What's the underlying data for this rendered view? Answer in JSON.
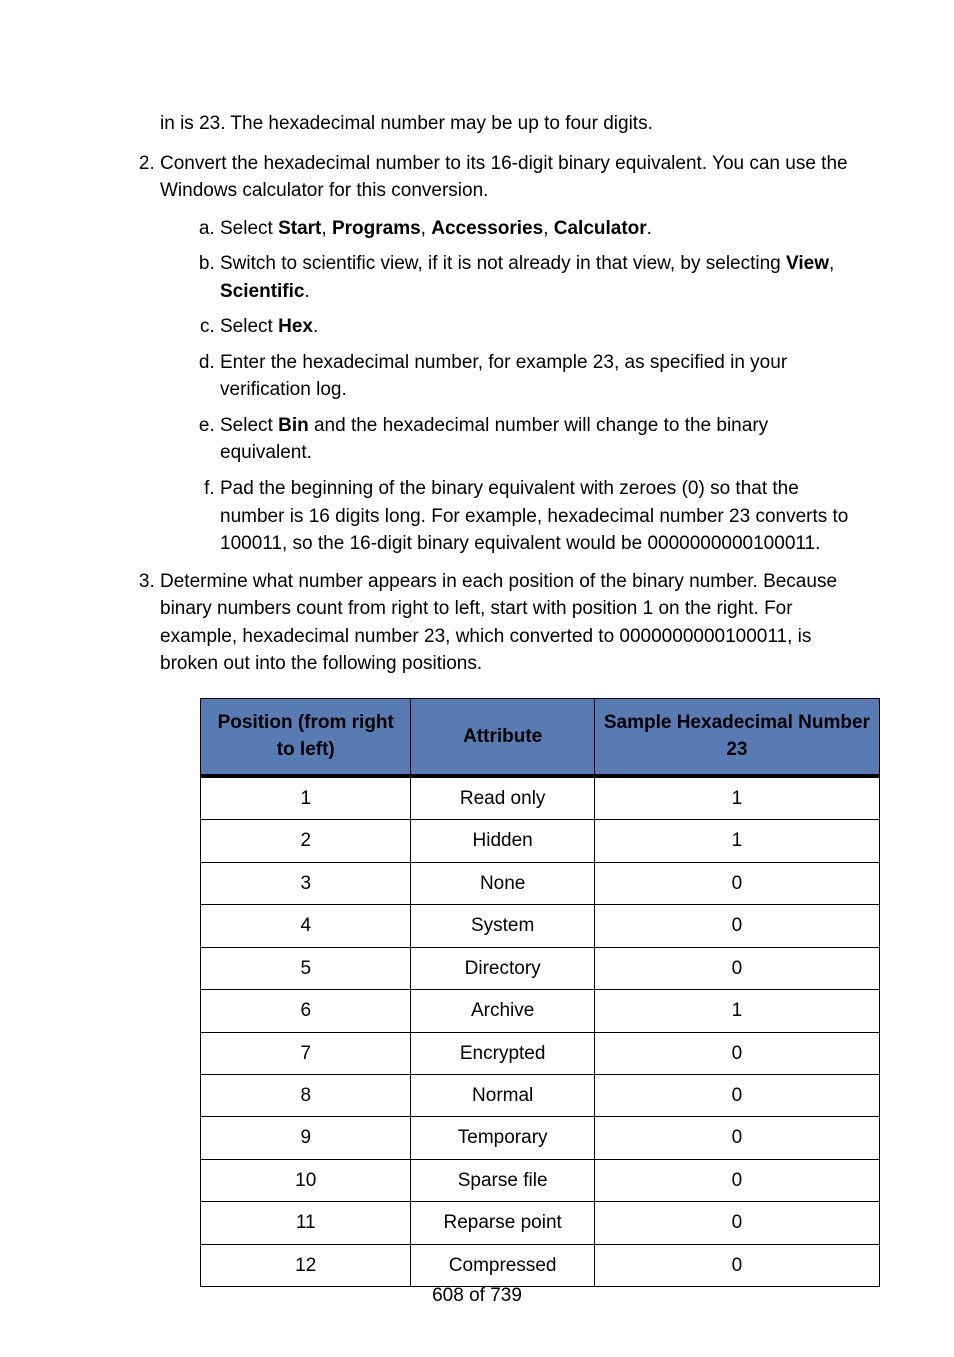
{
  "intro_fragment": "in is 23. The hexadecimal number may be up to four digits.",
  "list": {
    "item2": {
      "text": "Convert the hexadecimal number to its 16-digit binary equivalent. You can use the Windows calculator for this conversion.",
      "sub": {
        "a": {
          "pre": "Select ",
          "b1": "Start",
          "c1": ", ",
          "b2": "Programs",
          "c2": ", ",
          "b3": "Accessories",
          "c3": ", ",
          "b4": "Calculator",
          "post": "."
        },
        "b": {
          "pre": "Switch to scientific view, if it is not already in that view, by selecting ",
          "b1": "View",
          "c1": ", ",
          "b2": "Scientific",
          "post": "."
        },
        "c": {
          "pre": "Select ",
          "b1": "Hex",
          "post": "."
        },
        "d": {
          "text": "Enter the hexadecimal number, for example 23, as specified in your verification log."
        },
        "e": {
          "pre": "Select ",
          "b1": "Bin",
          "post": " and the hexadecimal number will change to the binary equivalent."
        },
        "f": {
          "text": "Pad the beginning of the binary equivalent with zeroes (0) so that the number is 16 digits long. For example, hexadecimal number 23 converts to 100011, so the 16-digit binary equivalent would be 0000000000100011."
        }
      }
    },
    "item3": {
      "text": "Determine what number appears in each position of the binary number. Because binary numbers count from right to left, start with position 1 on the right. For example, hexadecimal number 23, which converted to 0000000000100011, is broken out into the following positions."
    }
  },
  "table": {
    "headers": [
      "Position (from right to left)",
      "Attribute",
      "Sample Hexadecimal Number 23"
    ],
    "rows": [
      [
        "1",
        "Read only",
        "1"
      ],
      [
        "2",
        "Hidden",
        "1"
      ],
      [
        "3",
        "None",
        "0"
      ],
      [
        "4",
        "System",
        "0"
      ],
      [
        "5",
        "Directory",
        "0"
      ],
      [
        "6",
        "Archive",
        "1"
      ],
      [
        "7",
        "Encrypted",
        "0"
      ],
      [
        "8",
        "Normal",
        "0"
      ],
      [
        "9",
        "Temporary",
        "0"
      ],
      [
        "10",
        "Sparse file",
        "0"
      ],
      [
        "11",
        "Reparse point",
        "0"
      ],
      [
        "12",
        "Compressed",
        "0"
      ]
    ]
  },
  "page_number": "608 of 739",
  "colors": {
    "header_bg": "#597bb4",
    "border": "#000000",
    "text": "#000000",
    "page_bg": "#ffffff"
  }
}
